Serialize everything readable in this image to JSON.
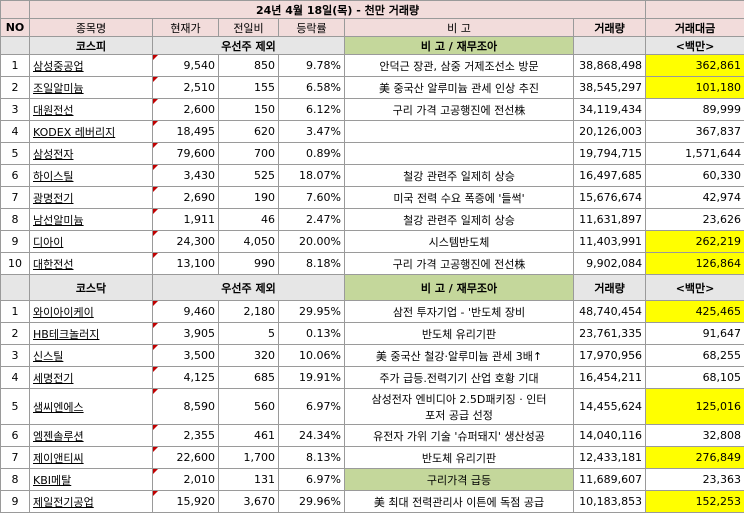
{
  "title": "24년 4월 18일(목) - 천만 거래량",
  "headers": {
    "no": "NO",
    "name": "종목명",
    "price": "현재가",
    "change": "전일비",
    "rate": "등락률",
    "note": "비 고",
    "volume": "거래량",
    "amount": "거래대금"
  },
  "kospi": {
    "label": "코스피",
    "subheader": "우선주 제외",
    "note_header": "비 고 / 재무조아",
    "unit": "<백만>",
    "rows": [
      {
        "no": "1",
        "name": "삼성중공업",
        "price": "9,540",
        "change": "850",
        "rate": "9.78%",
        "note": "안덕근 장관, 삼중 거제조선소 방문",
        "volume": "38,868,498",
        "amount": "362,861",
        "hl": true
      },
      {
        "no": "2",
        "name": "조일알미늄",
        "price": "2,510",
        "change": "155",
        "rate": "6.58%",
        "note": "美 중국산 알루미늄 관세 인상 추진",
        "volume": "38,545,297",
        "amount": "101,180",
        "hl": true
      },
      {
        "no": "3",
        "name": "대원전선",
        "price": "2,600",
        "change": "150",
        "rate": "6.12%",
        "note": "구리 가격 고공행진에 전선株",
        "volume": "34,119,434",
        "amount": "89,999",
        "hl": false
      },
      {
        "no": "4",
        "name": "KODEX 레버리지",
        "price": "18,495",
        "change": "620",
        "rate": "3.47%",
        "note": "",
        "volume": "20,126,003",
        "amount": "367,837",
        "hl": false
      },
      {
        "no": "5",
        "name": "삼성전자",
        "price": "79,600",
        "change": "700",
        "rate": "0.89%",
        "note": "",
        "volume": "19,794,715",
        "amount": "1,571,644",
        "hl": false
      },
      {
        "no": "6",
        "name": "하이스틸",
        "price": "3,430",
        "change": "525",
        "rate": "18.07%",
        "note": "철강 관련주 일제히 상승",
        "volume": "16,497,685",
        "amount": "60,330",
        "hl": false
      },
      {
        "no": "7",
        "name": "광명전기",
        "price": "2,690",
        "change": "190",
        "rate": "7.60%",
        "note": "미국 전력 수요 폭증에 '들썩'",
        "volume": "15,676,674",
        "amount": "42,974",
        "hl": false
      },
      {
        "no": "8",
        "name": "남선알미늄",
        "price": "1,911",
        "change": "46",
        "rate": "2.47%",
        "note": "철강 관련주 일제히 상승",
        "volume": "11,631,897",
        "amount": "23,626",
        "hl": false
      },
      {
        "no": "9",
        "name": "디아이",
        "price": "24,300",
        "change": "4,050",
        "rate": "20.00%",
        "note": "시스템반도체",
        "volume": "11,403,991",
        "amount": "262,219",
        "hl": true
      },
      {
        "no": "10",
        "name": "대한전선",
        "price": "13,100",
        "change": "990",
        "rate": "8.18%",
        "note": "구리 가격 고공행진에 전선株",
        "volume": "9,902,084",
        "amount": "126,864",
        "hl": true
      }
    ]
  },
  "kosdaq": {
    "label": "코스닥",
    "subheader": "우선주 제외",
    "note_header": "비 고 / 재무조아",
    "volume_header": "거래량",
    "unit": "<백만>",
    "rows": [
      {
        "no": "1",
        "name": "와이아이케이",
        "price": "9,460",
        "change": "2,180",
        "rate": "29.95%",
        "note": "삼전 투자기업 - '반도체 장비",
        "volume": "48,740,454",
        "amount": "425,465",
        "hl": true,
        "note_green": false
      },
      {
        "no": "2",
        "name": "HB테크놀러지",
        "price": "3,905",
        "change": "5",
        "rate": "0.13%",
        "note": "반도체 유리기판",
        "volume": "23,761,335",
        "amount": "91,647",
        "hl": false,
        "note_green": false
      },
      {
        "no": "3",
        "name": "신스틸",
        "price": "3,500",
        "change": "320",
        "rate": "10.06%",
        "note": "美 중국산 철강·알루미늄 관세 3배↑",
        "volume": "17,970,956",
        "amount": "68,255",
        "hl": false,
        "note_green": false
      },
      {
        "no": "4",
        "name": "세명전기",
        "price": "4,125",
        "change": "685",
        "rate": "19.91%",
        "note": "주가 급등.전력기기 산업 호황 기대",
        "volume": "16,454,211",
        "amount": "68,105",
        "hl": false,
        "note_green": false
      },
      {
        "no": "5",
        "name": "샘씨엔에스",
        "price": "8,590",
        "change": "560",
        "rate": "6.97%",
        "note": "삼성전자 엔비디아 2.5D패키징 · 인터",
        "note2": "포저 공급 선정",
        "volume": "14,455,624",
        "amount": "125,016",
        "hl": true,
        "note_green": false
      },
      {
        "no": "6",
        "name": "엠젠솔루션",
        "price": "2,355",
        "change": "461",
        "rate": "24.34%",
        "note": "유전자 가위 기술 '슈퍼돼지' 생산성공",
        "volume": "14,040,116",
        "amount": "32,808",
        "hl": false,
        "note_green": false
      },
      {
        "no": "7",
        "name": "제이앤티씨",
        "price": "22,600",
        "change": "1,700",
        "rate": "8.13%",
        "note": "반도체 유리기판",
        "volume": "12,433,181",
        "amount": "276,849",
        "hl": true,
        "note_green": false
      },
      {
        "no": "8",
        "name": "KBI메탈",
        "price": "2,010",
        "change": "131",
        "rate": "6.97%",
        "note": "구리가격 급등",
        "volume": "11,689,607",
        "amount": "23,363",
        "hl": false,
        "note_green": true
      },
      {
        "no": "9",
        "name": "제일전기공업",
        "price": "15,920",
        "change": "3,670",
        "rate": "29.96%",
        "note": "美 최대 전력관리사 이튼에 독점 공급",
        "volume": "10,183,853",
        "amount": "152,253",
        "hl": true,
        "note_green": false
      }
    ]
  }
}
